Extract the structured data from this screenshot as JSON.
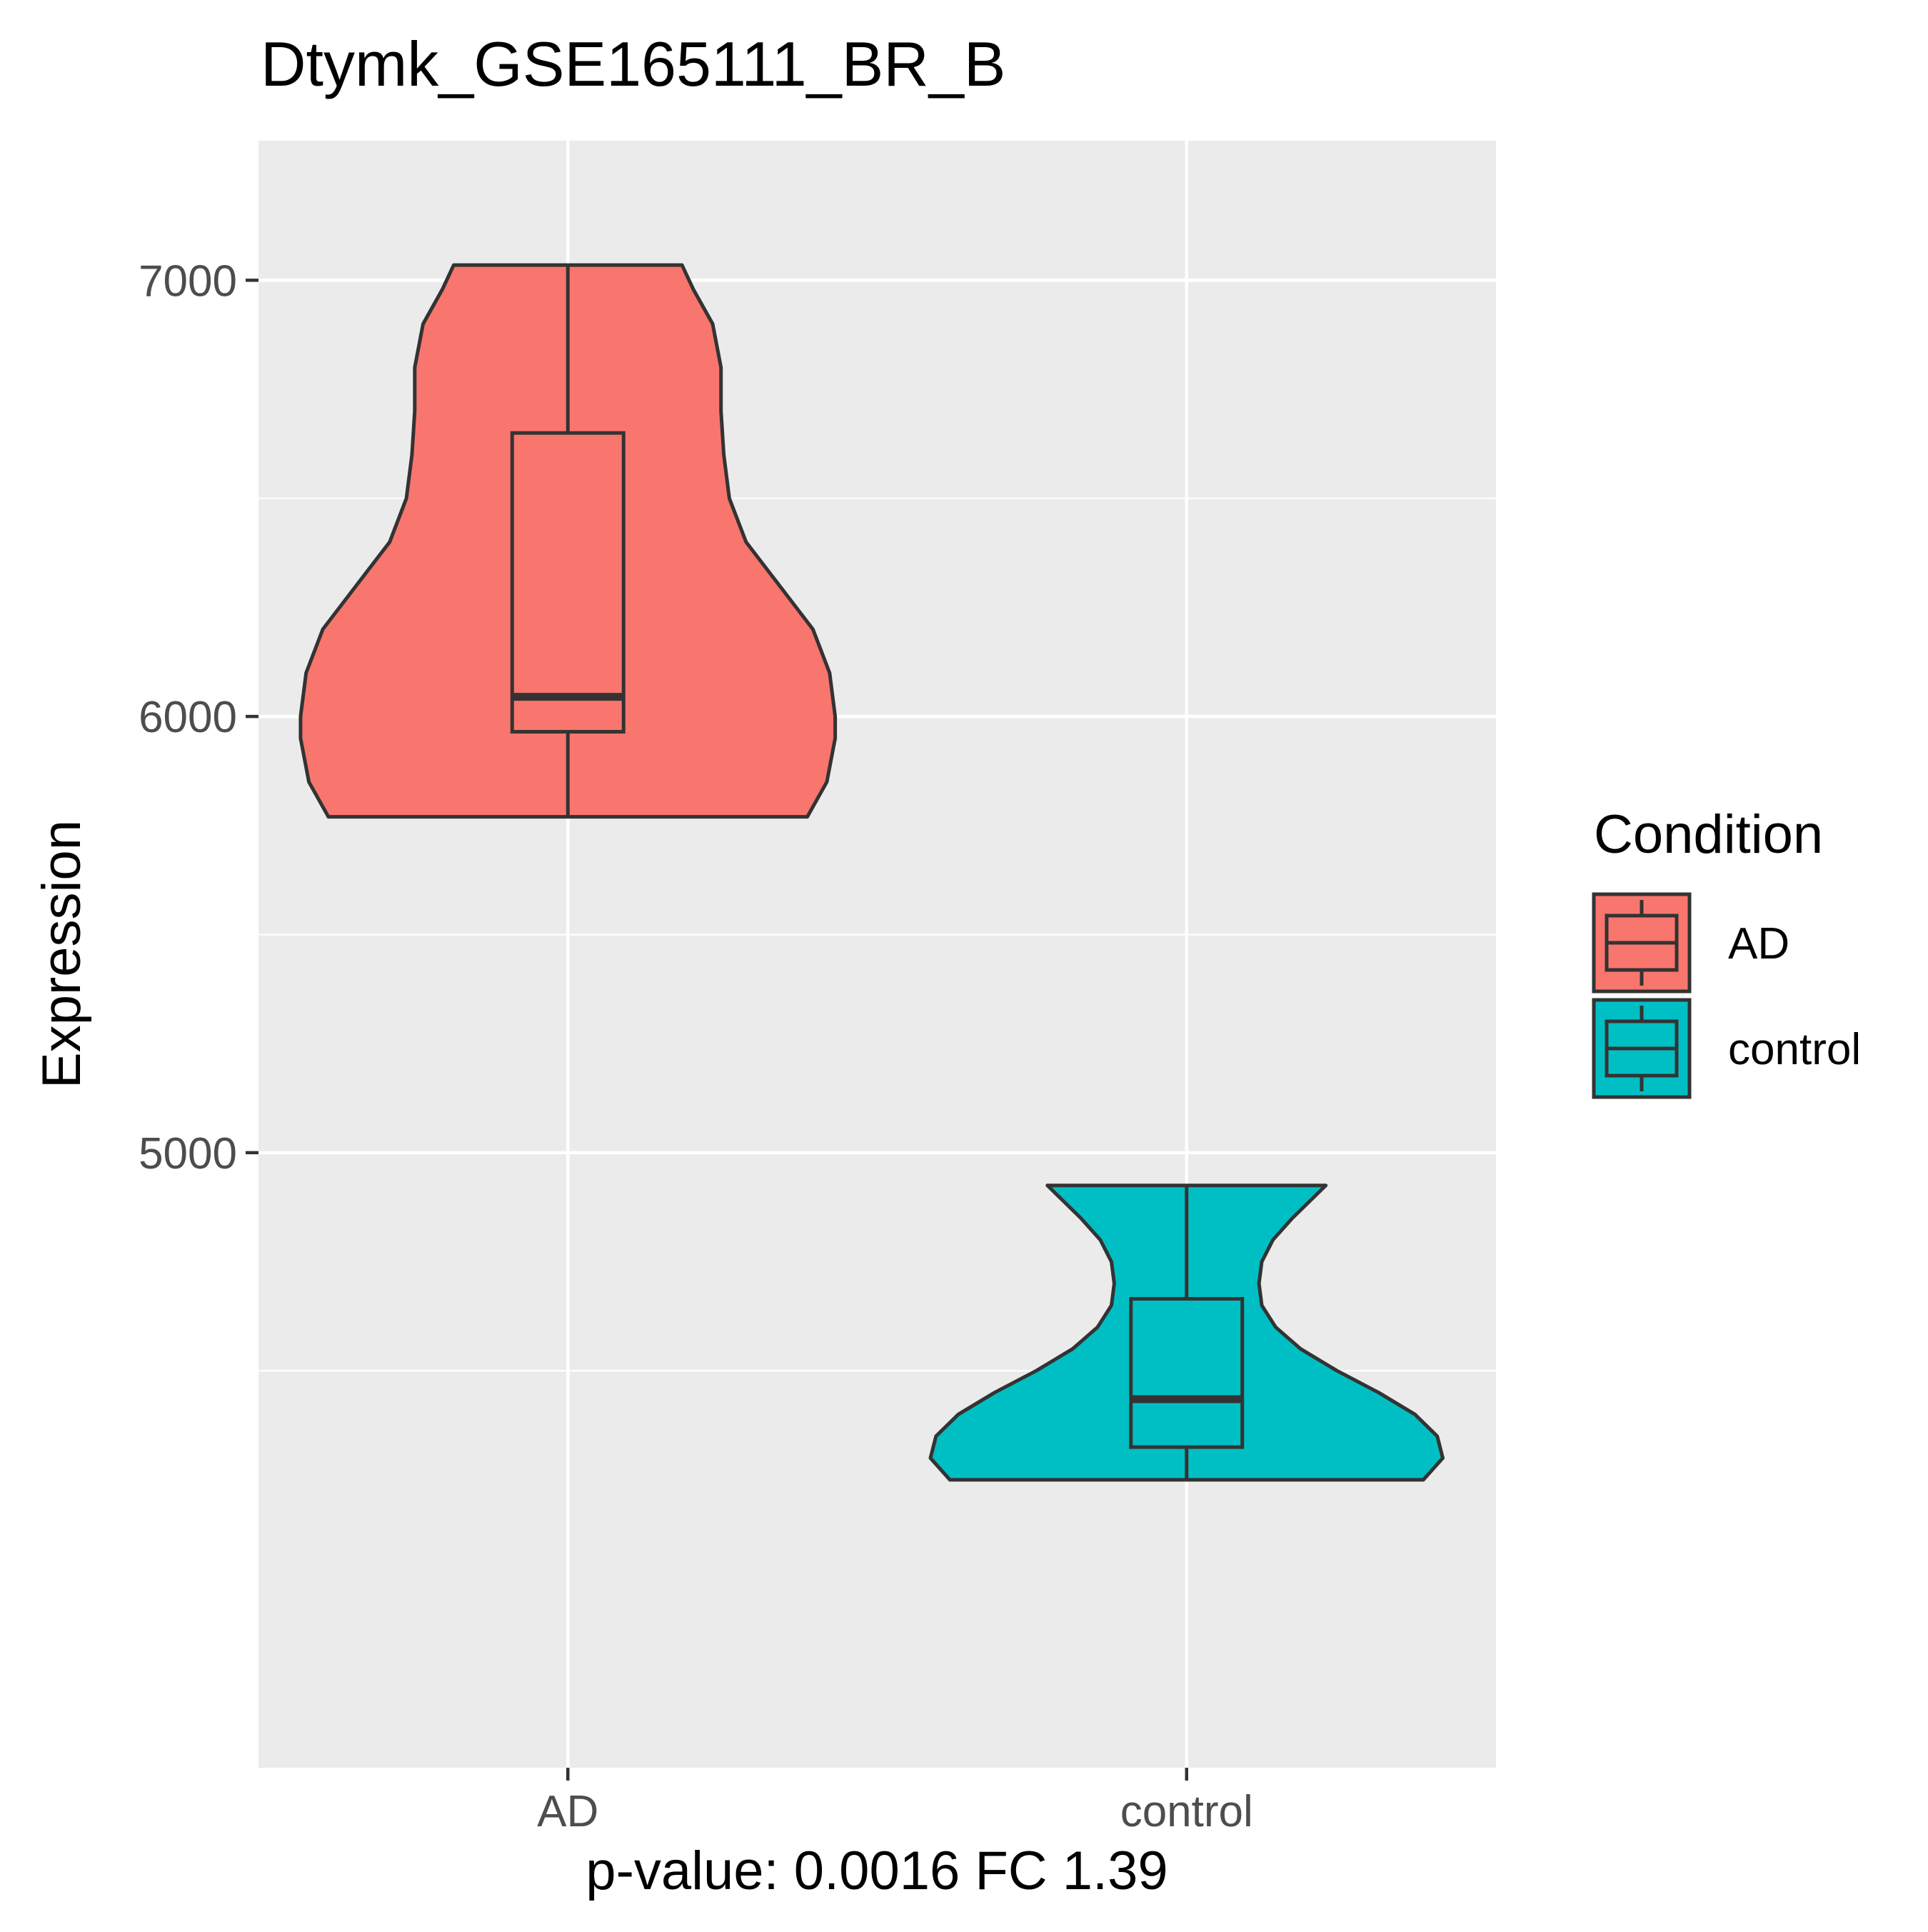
{
  "chart_data": {
    "type": "violin",
    "title": "Dtymk_GSE165111_BR_B",
    "xlabel": "p-value: 0.0016 FC 1.39",
    "ylabel": "Expression",
    "categories": [
      "AD",
      "control"
    ],
    "ylim": [
      3590,
      7320
    ],
    "yticks": [
      5000,
      6000,
      7000
    ],
    "grid": true,
    "legend": {
      "title": "Condition",
      "position": "right",
      "entries": [
        {
          "label": "AD",
          "color": "#F8766D"
        },
        {
          "label": "control",
          "color": "#00BFC4"
        }
      ]
    },
    "series": [
      {
        "name": "AD",
        "color": "#F8766D",
        "box": {
          "min": 5770,
          "q1": 5965,
          "median": 6045,
          "q3": 6650,
          "max": 7035
        },
        "violin": [
          [
            5770,
            0.86
          ],
          [
            5850,
            0.93
          ],
          [
            5950,
            0.96
          ],
          [
            6000,
            0.96
          ],
          [
            6100,
            0.94
          ],
          [
            6200,
            0.88
          ],
          [
            6300,
            0.76
          ],
          [
            6400,
            0.64
          ],
          [
            6500,
            0.58
          ],
          [
            6600,
            0.56
          ],
          [
            6700,
            0.55
          ],
          [
            6800,
            0.55
          ],
          [
            6900,
            0.52
          ],
          [
            6980,
            0.45
          ],
          [
            7035,
            0.41
          ]
        ]
      },
      {
        "name": "control",
        "color": "#00BFC4",
        "box": {
          "min": 4250,
          "q1": 4325,
          "median": 4435,
          "q3": 4665,
          "max": 4925
        },
        "violin": [
          [
            4250,
            0.85
          ],
          [
            4300,
            0.92
          ],
          [
            4350,
            0.9
          ],
          [
            4400,
            0.82
          ],
          [
            4450,
            0.69
          ],
          [
            4500,
            0.54
          ],
          [
            4550,
            0.41
          ],
          [
            4600,
            0.32
          ],
          [
            4650,
            0.27
          ],
          [
            4700,
            0.26
          ],
          [
            4750,
            0.27
          ],
          [
            4800,
            0.31
          ],
          [
            4850,
            0.38
          ],
          [
            4900,
            0.46
          ],
          [
            4925,
            0.5
          ]
        ]
      }
    ]
  }
}
